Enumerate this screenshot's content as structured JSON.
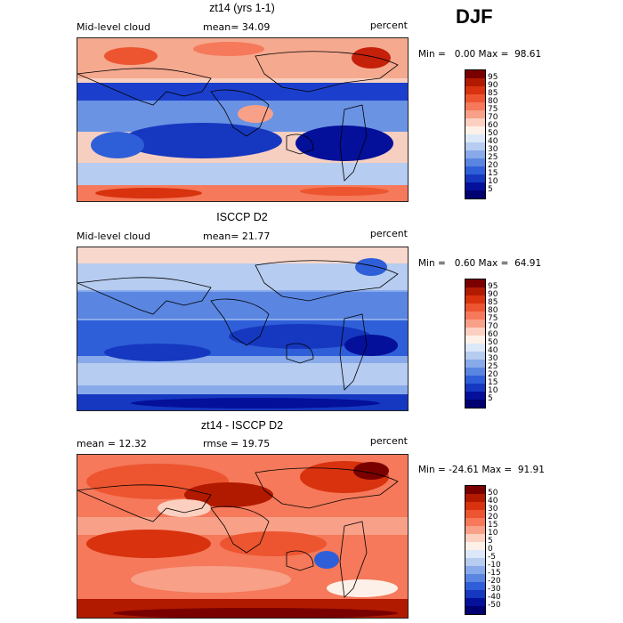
{
  "season": "DJF",
  "panels": [
    {
      "title": "zt14 (yrs 1-1)",
      "left_label": "Mid-level cloud",
      "stat_label": "mean=  34.09",
      "units": "percent",
      "min_label": "Min =",
      "min_value": "0.00",
      "max_label": "Max =",
      "max_value": "98.61",
      "field_mean": 34.09,
      "field_min": 0.0,
      "field_max": 98.61,
      "colorbar": {
        "levels": [
          "95",
          "90",
          "85",
          "80",
          "75",
          "70",
          "60",
          "50",
          "40",
          "30",
          "25",
          "20",
          "15",
          "10",
          "5"
        ],
        "colors": [
          "#7a0000",
          "#b21a00",
          "#d8320e",
          "#ec5530",
          "#f5795a",
          "#f8a088",
          "#fbd0c0",
          "#fdf0e8",
          "#dce8f8",
          "#b6ccf0",
          "#88aaea",
          "#5a86e2",
          "#2f5fd8",
          "#1638c0",
          "#04109a",
          "#000070"
        ]
      }
    },
    {
      "title": "ISCCP D2",
      "left_label": "Mid-level cloud",
      "stat_label": "mean=  21.77",
      "units": "percent",
      "min_label": "Min =",
      "min_value": "0.60",
      "max_label": "Max =",
      "max_value": "64.91",
      "field_mean": 21.77,
      "field_min": 0.6,
      "field_max": 64.91,
      "colorbar": {
        "levels": [
          "95",
          "90",
          "85",
          "80",
          "75",
          "70",
          "60",
          "50",
          "40",
          "30",
          "25",
          "20",
          "15",
          "10",
          "5"
        ],
        "colors": [
          "#7a0000",
          "#b21a00",
          "#d8320e",
          "#ec5530",
          "#f5795a",
          "#f8a088",
          "#fbd0c0",
          "#fdf0e8",
          "#dce8f8",
          "#b6ccf0",
          "#88aaea",
          "#5a86e2",
          "#2f5fd8",
          "#1638c0",
          "#04109a",
          "#000070"
        ]
      }
    },
    {
      "title": "zt14 - ISCCP D2",
      "left_label": "mean =  12.32",
      "stat_label": "rmse =  19.75",
      "units": "percent",
      "min_label": "Min =",
      "min_value": "-24.61",
      "max_label": "Max =",
      "max_value": "91.91",
      "field_mean": 12.32,
      "field_rmse": 19.75,
      "field_min": -24.61,
      "field_max": 91.91,
      "colorbar": {
        "levels": [
          "50",
          "40",
          "30",
          "20",
          "15",
          "10",
          "5",
          "0",
          "-5",
          "-10",
          "-15",
          "-20",
          "-30",
          "-40",
          "-50"
        ],
        "colors": [
          "#7a0000",
          "#b21a00",
          "#d8320e",
          "#ec5530",
          "#f5795a",
          "#f8a088",
          "#fbd0c0",
          "#fdf0e8",
          "#dce8f8",
          "#b6ccf0",
          "#88aaea",
          "#5a86e2",
          "#2f5fd8",
          "#1638c0",
          "#04109a",
          "#000070"
        ]
      }
    }
  ]
}
